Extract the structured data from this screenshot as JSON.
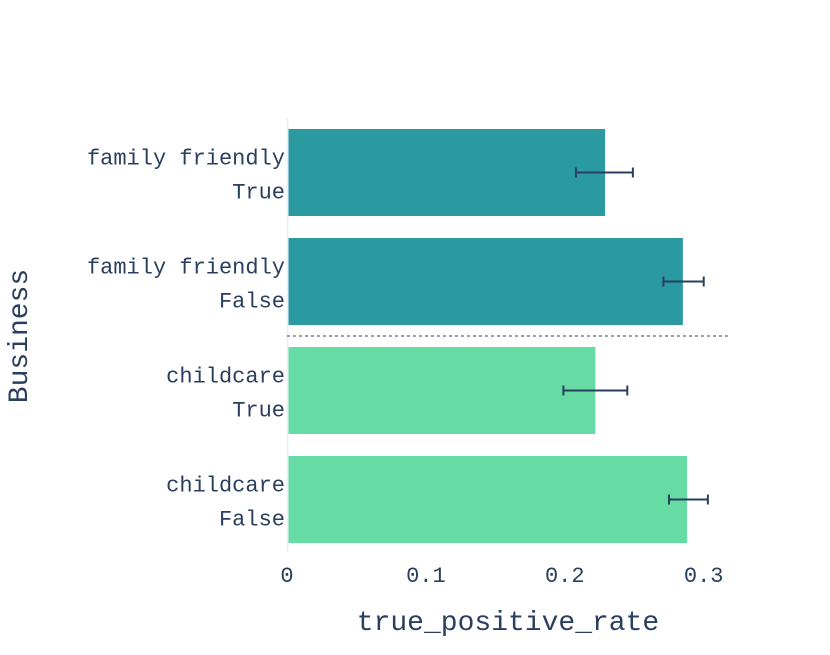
{
  "chart_data": {
    "type": "bar",
    "orientation": "horizontal",
    "title": "",
    "xlabel": "true_positive_rate",
    "ylabel": "Business",
    "xlim": [
      0,
      0.32
    ],
    "xticks": [
      0,
      0.1,
      0.2,
      0.3
    ],
    "xtick_labels": [
      "0",
      "0.1",
      "0.2",
      "0.3"
    ],
    "grid": false,
    "legend": "none",
    "bars": [
      {
        "group": "family friendly",
        "label": "True",
        "value": 0.229,
        "error_low": 0.208,
        "error_high": 0.249,
        "color": "#2a99a0"
      },
      {
        "group": "family friendly",
        "label": "False",
        "value": 0.285,
        "error_low": 0.271,
        "error_high": 0.3,
        "color": "#2a99a0"
      },
      {
        "group": "childcare",
        "label": "True",
        "value": 0.222,
        "error_low": 0.199,
        "error_high": 0.245,
        "color": "#66dba4"
      },
      {
        "group": "childcare",
        "label": "False",
        "value": 0.288,
        "error_low": 0.275,
        "error_high": 0.303,
        "color": "#66dba4"
      }
    ],
    "separator_after_index": 1
  }
}
